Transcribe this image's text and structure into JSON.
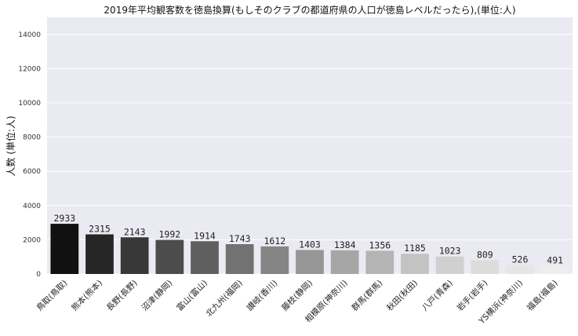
{
  "chart_data": {
    "type": "bar",
    "title": "2019年平均観客数を徳島換算(もしそのクラブの都道府県の人口が徳島レベルだったら),(単位:人)",
    "xlabel": "",
    "ylabel": "人数 (単位:人)",
    "ylim": [
      0,
      15000
    ],
    "yticks": [
      0,
      2000,
      4000,
      6000,
      8000,
      10000,
      12000,
      14000
    ],
    "grid": true,
    "categories": [
      "鳥取(鳥取)",
      "熊本(熊本)",
      "長野(長野)",
      "沼津(静岡)",
      "富山(富山)",
      "北九州(福岡)",
      "讃岐(香川)",
      "藤枝(静岡)",
      "相模原(神奈川)",
      "群馬(群馬)",
      "秋田(秋田)",
      "八戸(青森)",
      "岩手(岩手)",
      "YS横浜(神奈川)",
      "福島(福島)"
    ],
    "values": [
      2933,
      2315,
      2143,
      1992,
      1914,
      1743,
      1612,
      1403,
      1384,
      1356,
      1185,
      1023,
      809,
      526,
      491
    ],
    "colors": [
      "#111111",
      "#262626",
      "#383838",
      "#4c4c4c",
      "#5f5f5f",
      "#727272",
      "#858585",
      "#969696",
      "#a6a6a6",
      "#b4b4b4",
      "#c3c3c3",
      "#d0d0d0",
      "#dcdcdc",
      "#e6e6e6",
      "#eeeeee"
    ],
    "plot_background": "#eaeaf2",
    "grid_color": "#ffffff"
  }
}
